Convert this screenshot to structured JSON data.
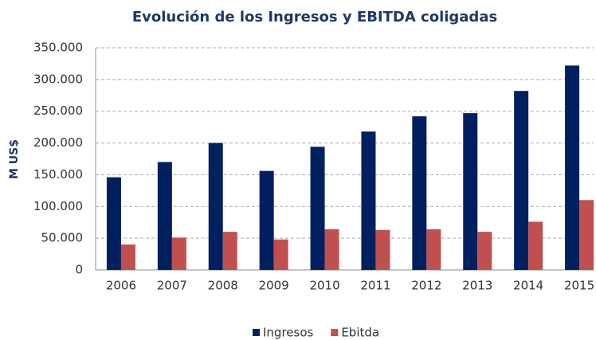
{
  "chart_data": {
    "type": "bar",
    "title": "Evolución de los Ingresos y EBITDA coligadas",
    "y_label": "M US$",
    "categories": [
      "2006",
      "2007",
      "2008",
      "2009",
      "2010",
      "2011",
      "2012",
      "2013",
      "2014",
      "2015"
    ],
    "series": [
      {
        "name": "Ingresos",
        "color": "#002060",
        "values": [
          146000,
          170000,
          200000,
          156000,
          194000,
          218000,
          242000,
          247000,
          282000,
          322000
        ]
      },
      {
        "name": "Ebitda",
        "color": "#c0504d",
        "values": [
          40000,
          51000,
          60000,
          48000,
          64000,
          63000,
          64000,
          60000,
          76000,
          110000
        ]
      }
    ],
    "ylim": [
      0,
      350000
    ],
    "yticks": [
      0,
      {
        "value": 50000,
        "label": "50.000"
      },
      {
        "value": 100000,
        "label": "100.000"
      },
      {
        "value": 150000,
        "label": "150.000"
      },
      {
        "value": 200000,
        "label": "200.000"
      },
      {
        "value": 250000,
        "label": "250.000"
      },
      {
        "value": 300000,
        "label": "300.000"
      },
      {
        "value": 350000,
        "label": "350.000"
      }
    ],
    "grid": true,
    "legend": "bottom"
  }
}
